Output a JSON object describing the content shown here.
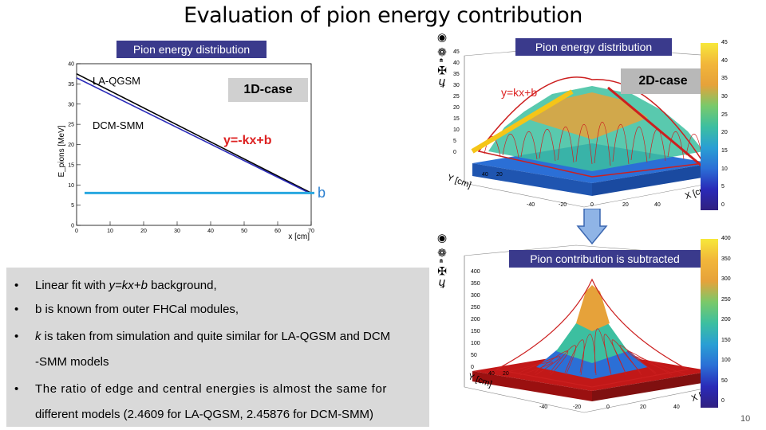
{
  "slide": {
    "title": "Evaluation of pion energy contribution",
    "page_number": "10",
    "overlay_glyphs": "ℏ✠⁍❁◉"
  },
  "left_panel": {
    "header": "Pion energy distribution",
    "case_label": "1D-case",
    "fit_label": "y=-kx+b",
    "b_label": "b",
    "legend_la": "LA-QGSM",
    "legend_dcm": "DCM-SMM"
  },
  "right_top": {
    "header": "Pion energy distribution",
    "case_label": "2D-case",
    "fit_label": "y=kx+b",
    "y_axis": "Y [cm]",
    "x_axis": "X [cm]",
    "y_ticks": [
      "40",
      "20"
    ],
    "x_ticks": [
      "-40",
      "-20",
      "0",
      "20",
      "40"
    ],
    "z_ticks": [
      "45",
      "40",
      "35",
      "30",
      "25",
      "20",
      "15",
      "10",
      "5",
      "0"
    ],
    "colorbar_ticks": [
      "45",
      "40",
      "35",
      "30",
      "25",
      "20",
      "15",
      "10",
      "5",
      "0"
    ]
  },
  "right_bottom": {
    "header": "Pion contribution is subtracted",
    "y_axis": "Y [cm]",
    "x_axis": "X [cm]",
    "y_ticks": [
      "40",
      "20"
    ],
    "x_ticks": [
      "-40",
      "-20",
      "0",
      "20",
      "40"
    ],
    "z_ticks": [
      "400",
      "350",
      "300",
      "250",
      "200",
      "150",
      "100",
      "50",
      "0"
    ],
    "colorbar_ticks": [
      "400",
      "350",
      "300",
      "250",
      "200",
      "150",
      "100",
      "50",
      "0"
    ]
  },
  "bullets": [
    {
      "pre": "Linear fit with ",
      "em": "y=kx+b",
      "post": " background,"
    },
    {
      "pre": "b is known from outer FHCal modules,",
      "em": "",
      "post": ""
    },
    {
      "pre": "",
      "em": "k",
      "post": " is taken from simulation and quite similar for LA-QGSM and DCM"
    },
    {
      "pre": "-SMM models",
      "em": "",
      "post": ""
    },
    {
      "pre": "The ratio of edge and central energies is almost the same for",
      "em": "",
      "post": ""
    },
    {
      "pre": "different models (2.4609 for LA-QGSM, 2.45876 for DCM-SMM)",
      "em": "",
      "post": ""
    }
  ],
  "colors": {
    "accent": "#3a3a8c",
    "baseline": "#29a8e0",
    "la_line": "#000000",
    "dcm_line": "#2a2ab8",
    "fit_surface": "#cc1f1f",
    "fit_line_top": "#f5c518"
  },
  "chart_data": [
    {
      "type": "line",
      "xlabel": "x [cm]",
      "ylabel": "E_pions [MeV]",
      "xlim": [
        0,
        70
      ],
      "ylim": [
        0,
        40
      ],
      "x_ticks": [
        0,
        10,
        20,
        30,
        40,
        50,
        60,
        70
      ],
      "y_ticks": [
        0,
        5,
        10,
        15,
        20,
        25,
        30,
        35,
        40
      ],
      "series": [
        {
          "name": "LA-QGSM",
          "x": [
            0,
            70
          ],
          "y": [
            37.5,
            8.0
          ]
        },
        {
          "name": "DCM-SMM",
          "x": [
            0,
            70
          ],
          "y": [
            36.5,
            7.8
          ]
        }
      ],
      "baseline": {
        "y": 8.0,
        "label": "b"
      }
    }
  ]
}
